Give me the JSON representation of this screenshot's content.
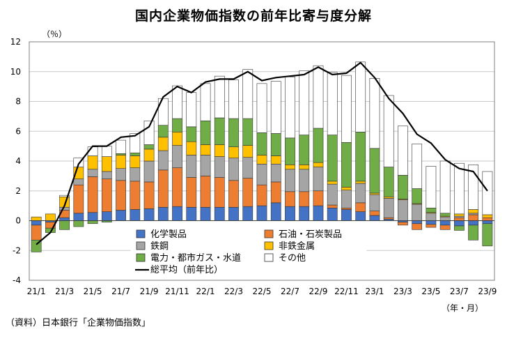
{
  "title": "国内企業物価指数の前年比寄与度分解",
  "unit_label": "（％）",
  "x_unit_label": "（年・月）",
  "source_note": "（資料）日本銀行「企業物価指数」",
  "chart_data": {
    "type": "bar",
    "stacked": true,
    "ylim": [
      -4,
      12
    ],
    "yticks": [
      -4,
      -2,
      0,
      2,
      4,
      6,
      8,
      10,
      12
    ],
    "grid": true,
    "legend_position": "bottom-center",
    "categories": [
      "21/1",
      "21/2",
      "21/3",
      "21/4",
      "21/5",
      "21/6",
      "21/7",
      "21/8",
      "21/9",
      "21/10",
      "21/11",
      "21/12",
      "22/1",
      "22/2",
      "22/3",
      "22/4",
      "22/5",
      "22/6",
      "22/7",
      "22/8",
      "22/9",
      "22/10",
      "22/11",
      "22/12",
      "23/1",
      "23/2",
      "23/3",
      "23/4",
      "23/5",
      "23/6",
      "23/7",
      "23/8",
      "23/9"
    ],
    "x_tick_labels": [
      "21/1",
      "",
      "21/3",
      "",
      "21/5",
      "",
      "21/7",
      "",
      "21/9",
      "",
      "21/11",
      "",
      "22/1",
      "",
      "22/3",
      "",
      "22/5",
      "",
      "22/7",
      "",
      "22/9",
      "",
      "22/11",
      "",
      "23/1",
      "",
      "23/3",
      "",
      "23/5",
      "",
      "23/7",
      "",
      "23/9"
    ],
    "series": [
      {
        "name": "化学製品",
        "color": "#4472C4",
        "values": [
          -0.3,
          -0.1,
          0.2,
          0.5,
          0.55,
          0.6,
          0.7,
          0.75,
          0.8,
          0.9,
          0.95,
          0.9,
          0.9,
          0.9,
          0.9,
          0.95,
          1.0,
          1.2,
          0.95,
          0.95,
          1.0,
          0.85,
          0.75,
          0.6,
          0.35,
          0.1,
          -0.1,
          -0.2,
          -0.25,
          -0.3,
          -0.35,
          -0.3,
          -0.2
        ]
      },
      {
        "name": "石油・石炭製品",
        "color": "#ED7D31",
        "values": [
          -1.0,
          -0.4,
          0.5,
          1.9,
          2.4,
          2.2,
          2.0,
          1.9,
          1.8,
          2.5,
          2.6,
          2.0,
          2.1,
          2.0,
          1.8,
          1.9,
          1.4,
          1.4,
          1.0,
          1.0,
          1.0,
          0.2,
          0.1,
          0.6,
          0.3,
          0.1,
          -0.2,
          -0.4,
          -0.2,
          -0.3,
          0.2,
          0.4,
          0.2
        ]
      },
      {
        "name": "鉄鋼",
        "color": "#A5A5A5",
        "values": [
          0.0,
          0.0,
          0.2,
          0.4,
          0.5,
          0.5,
          0.8,
          0.9,
          1.4,
          1.3,
          1.5,
          1.5,
          1.4,
          1.4,
          1.5,
          1.4,
          1.4,
          1.2,
          1.5,
          1.5,
          1.6,
          1.4,
          1.2,
          1.3,
          1.1,
          1.3,
          1.4,
          1.1,
          0.5,
          0.25,
          0.1,
          0.1,
          0.0
        ]
      },
      {
        "name": "非鉄金属",
        "color": "#FFC000",
        "values": [
          0.25,
          0.45,
          0.7,
          0.8,
          0.9,
          1.0,
          0.9,
          0.8,
          0.8,
          0.9,
          0.9,
          0.9,
          0.7,
          0.8,
          0.75,
          0.8,
          0.6,
          0.55,
          0.3,
          0.3,
          0.3,
          0.2,
          0.2,
          0.15,
          0.1,
          0.1,
          0.05,
          0.05,
          0.05,
          0.05,
          0.15,
          0.25,
          0.2
        ]
      },
      {
        "name": "電力・都市ガス・水道",
        "color": "#70AD47",
        "values": [
          -0.8,
          -0.3,
          -0.6,
          -0.4,
          -0.2,
          -0.1,
          0.1,
          0.2,
          0.3,
          0.8,
          0.9,
          1.0,
          1.6,
          1.8,
          1.9,
          1.8,
          1.5,
          1.5,
          1.8,
          2.0,
          2.3,
          3.1,
          3.0,
          3.3,
          3.0,
          2.0,
          1.6,
          1.0,
          0.3,
          0.2,
          -0.3,
          -1.0,
          -1.5
        ]
      },
      {
        "name": "その他",
        "color": "#FFFFFF",
        "values": [
          0.0,
          0.0,
          0.1,
          0.6,
          0.6,
          0.7,
          0.9,
          1.3,
          1.6,
          1.8,
          2.2,
          2.3,
          2.5,
          2.8,
          2.6,
          3.3,
          3.3,
          3.5,
          4.1,
          4.3,
          4.2,
          4.2,
          4.5,
          4.7,
          4.7,
          4.8,
          3.3,
          3.0,
          2.8,
          3.5,
          3.4,
          3.0,
          2.9
        ]
      }
    ],
    "line": {
      "name": "総平均（前年比）",
      "color": "#000000",
      "values": [
        -1.6,
        -0.8,
        1.0,
        3.8,
        5.0,
        5.0,
        5.6,
        5.7,
        6.3,
        8.3,
        9.0,
        8.6,
        9.3,
        9.5,
        9.5,
        10.0,
        9.4,
        9.6,
        9.7,
        9.8,
        10.3,
        9.8,
        9.9,
        10.6,
        9.6,
        8.2,
        7.2,
        5.8,
        5.2,
        4.1,
        3.5,
        3.3,
        2.0
      ]
    }
  }
}
